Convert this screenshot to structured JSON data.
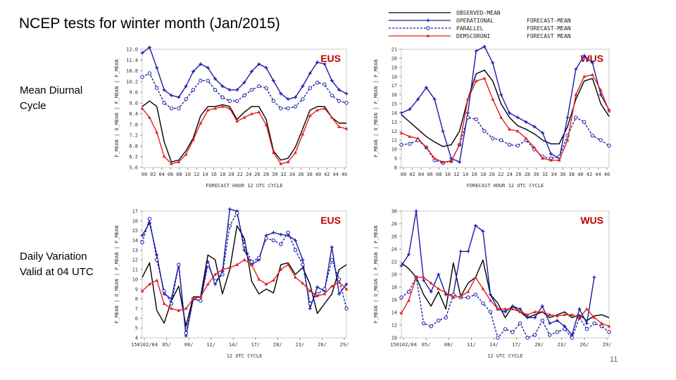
{
  "page": {
    "title": "NCEP tests for winter month (Jan/2015)",
    "row1_label": [
      "Mean Diurnal",
      "Cycle"
    ],
    "row2_label": [
      "Daily Variation",
      "Valid at 04 UTC"
    ],
    "page_number": "11"
  },
  "legend": [
    {
      "name": "OBSERVED-MEAN",
      "extra": "",
      "color": "#000000",
      "marker": "none",
      "dash": false
    },
    {
      "name": "OPERATIONAL",
      "extra": "FORECAST-MEAN",
      "color": "#1a1aa8",
      "marker": "plus",
      "dash": false
    },
    {
      "name": "PARALLEL",
      "extra": "FORECAST-MEAN",
      "color": "#1a1aa8",
      "marker": "circle",
      "dash": true
    },
    {
      "name": "DEMSCORONI",
      "extra": "FORECAST MEAN",
      "color": "#e02020",
      "marker": "triangle",
      "dash": false
    }
  ],
  "chart_data": [
    {
      "type": "line",
      "id": "eus-diurnal",
      "title": "EUS",
      "xlabel": "FORECAST HOUR  12 UTC CYCLE",
      "ylabel": "F_MEAN | O_MEAN | F_MEAN | F_MEAN",
      "xticks": [
        "00",
        "02",
        "04",
        "06",
        "08",
        "10",
        "12",
        "14",
        "16",
        "18",
        "20",
        "22",
        "24",
        "26",
        "28",
        "30",
        "32",
        "34",
        "36",
        "38",
        "40",
        "42",
        "44",
        "46"
      ],
      "yticks": [
        "5.6",
        "6.2",
        "6.8",
        "7.2",
        "7.8",
        "8.4",
        "9.0",
        "9.6",
        "10.2",
        "10.8",
        "11.4",
        "12.0"
      ],
      "ylim": [
        5.6,
        12.0
      ],
      "series": [
        {
          "name": "OBSERVED-MEAN",
          "color": "#000000",
          "marker": "none",
          "dash": false,
          "values": [
            8.9,
            9.2,
            8.9,
            7.0,
            5.9,
            6.0,
            6.5,
            7.2,
            8.4,
            8.9,
            8.9,
            9.0,
            8.9,
            8.2,
            8.6,
            8.9,
            8.9,
            8.2,
            6.5,
            6.0,
            6.1,
            6.7,
            7.7,
            8.7,
            8.9,
            8.9,
            8.3,
            8.0,
            8.0
          ]
        },
        {
          "name": "OPERATIONAL",
          "color": "#1a1aa8",
          "marker": "plus",
          "dash": false,
          "values": [
            11.8,
            12.1,
            11.0,
            9.8,
            9.5,
            9.4,
            10.0,
            10.8,
            11.2,
            11.0,
            10.4,
            10.0,
            9.8,
            9.8,
            10.2,
            10.8,
            11.2,
            11.0,
            10.3,
            9.6,
            9.3,
            9.4,
            10.0,
            10.7,
            11.3,
            11.2,
            10.3,
            9.8,
            9.6
          ]
        },
        {
          "name": "PARALLEL",
          "color": "#1a1aa8",
          "marker": "circle",
          "dash": true,
          "values": [
            10.5,
            10.7,
            9.9,
            9.1,
            8.8,
            8.8,
            9.3,
            9.8,
            10.3,
            10.3,
            9.8,
            9.4,
            9.2,
            9.2,
            9.5,
            9.8,
            10.0,
            9.9,
            9.2,
            8.8,
            8.8,
            8.9,
            9.3,
            9.9,
            10.2,
            10.1,
            9.5,
            9.2,
            9.1
          ]
        },
        {
          "name": "DEMSCORONI",
          "color": "#e02020",
          "marker": "triangle",
          "dash": false,
          "values": [
            8.8,
            8.3,
            7.5,
            6.2,
            5.8,
            5.9,
            6.3,
            7.1,
            8.0,
            8.7,
            8.8,
            8.9,
            8.8,
            8.1,
            8.3,
            8.5,
            8.6,
            7.9,
            6.4,
            5.8,
            5.9,
            6.4,
            7.4,
            8.4,
            8.7,
            8.8,
            8.3,
            7.8,
            7.7
          ]
        }
      ]
    },
    {
      "type": "line",
      "id": "wus-diurnal",
      "title": "WUS",
      "xlabel": "FORECAST HOUR  12 UTC CYCLE",
      "ylabel": "F_MEAN | O_MEAN | F_MEAN | F_MEAN",
      "xticks": [
        "00",
        "02",
        "04",
        "06",
        "08",
        "10",
        "12",
        "14",
        "16",
        "18",
        "20",
        "22",
        "24",
        "26",
        "28",
        "30",
        "32",
        "34",
        "36",
        "38",
        "40",
        "42",
        "44",
        "46"
      ],
      "yticks": [
        "8",
        "9",
        "10",
        "11",
        "12",
        "13",
        "14",
        "15",
        "16",
        "17",
        "18",
        "19",
        "20",
        "21"
      ],
      "ylim": [
        8,
        21
      ],
      "series": [
        {
          "name": "OBSERVED-MEAN",
          "color": "#000000",
          "marker": "none",
          "dash": false,
          "values": [
            13.8,
            13.0,
            12.2,
            11.4,
            10.8,
            10.3,
            10.5,
            12.0,
            15.5,
            18.3,
            18.7,
            17.5,
            15.0,
            13.5,
            12.6,
            12.2,
            11.7,
            11.0,
            10.6,
            10.6,
            12.5,
            15.5,
            17.5,
            17.8,
            15.0,
            13.6
          ]
        },
        {
          "name": "OPERATIONAL",
          "color": "#1a1aa8",
          "marker": "plus",
          "dash": false,
          "values": [
            14.0,
            14.4,
            15.5,
            16.8,
            15.5,
            12.0,
            9.0,
            8.6,
            14.0,
            20.8,
            21.3,
            19.5,
            16.0,
            14.0,
            13.5,
            13.0,
            12.5,
            11.8,
            9.5,
            9.0,
            13.5,
            18.8,
            20.3,
            19.5,
            16.0,
            14.3
          ]
        },
        {
          "name": "PARALLEL",
          "color": "#1a1aa8",
          "marker": "circle",
          "dash": true,
          "values": [
            10.5,
            10.6,
            11.0,
            10.2,
            8.8,
            8.5,
            8.7,
            10.5,
            13.5,
            13.3,
            12.0,
            11.2,
            11.0,
            10.5,
            10.4,
            11.0,
            10.0,
            9.2,
            9.0,
            9.2,
            11.5,
            13.5,
            13.0,
            11.5,
            11.0,
            10.4
          ]
        },
        {
          "name": "DEMSCORONI",
          "color": "#e02020",
          "marker": "triangle",
          "dash": false,
          "values": [
            11.8,
            11.4,
            11.2,
            10.2,
            9.0,
            8.6,
            8.7,
            10.5,
            15.5,
            17.5,
            17.8,
            15.5,
            13.5,
            12.2,
            12.0,
            11.2,
            10.2,
            9.0,
            8.8,
            8.8,
            11.0,
            16.0,
            18.0,
            18.2,
            16.5,
            14.2
          ]
        }
      ]
    },
    {
      "type": "line",
      "id": "eus-daily",
      "title": "EUS",
      "xlabel": "12 UTC CYCLE",
      "ylabel": "F_MEAN | O_MEAN | F_MEAN | F_MEAN",
      "xticks": [
        "150102/04",
        "05/",
        "08/",
        "11/",
        "14/",
        "17/",
        "20/",
        "23/",
        "26/",
        "29/"
      ],
      "yticks": [
        "4",
        "5",
        "6",
        "7",
        "8",
        "9",
        "10",
        "11",
        "12",
        "13",
        "14",
        "15",
        "16",
        "17"
      ],
      "ylim": [
        4,
        17
      ],
      "series": [
        {
          "name": "OBSERVED-MEAN",
          "color": "#000000",
          "marker": "none",
          "dash": false,
          "values": [
            10.2,
            11.7,
            6.8,
            5.5,
            7.8,
            9.3,
            5.2,
            8.2,
            8.2,
            12.5,
            12.0,
            8.5,
            11.0,
            15.5,
            14.2,
            9.8,
            8.5,
            9.0,
            8.6,
            11.5,
            11.7,
            10.5,
            11.2,
            9.5,
            6.5,
            7.5,
            8.5,
            11.0,
            11.5
          ]
        },
        {
          "name": "OPERATIONAL",
          "color": "#1a1aa8",
          "marker": "plus",
          "dash": false,
          "values": [
            14.5,
            15.8,
            12.5,
            8.5,
            8.0,
            11.5,
            4.2,
            8.0,
            7.8,
            11.8,
            9.5,
            10.8,
            17.2,
            17.0,
            13.0,
            11.5,
            12.0,
            14.5,
            14.8,
            14.6,
            14.5,
            14.0,
            12.0,
            7.0,
            9.2,
            8.8,
            13.3,
            8.5,
            9.5
          ]
        },
        {
          "name": "PARALLEL",
          "color": "#1a1aa8",
          "marker": "circle",
          "dash": true,
          "values": [
            13.8,
            16.2,
            12.0,
            8.8,
            7.5,
            11.5,
            4.5,
            8.0,
            7.8,
            11.5,
            9.8,
            10.5,
            15.5,
            16.8,
            13.5,
            11.8,
            12.2,
            14.2,
            14.0,
            13.6,
            14.8,
            13.0,
            11.5,
            7.5,
            8.5,
            9.0,
            12.0,
            10.0,
            7.0
          ]
        },
        {
          "name": "DEMSCORONI",
          "color": "#e02020",
          "marker": "triangle",
          "dash": false,
          "values": [
            8.8,
            9.5,
            9.9,
            7.5,
            7.0,
            6.8,
            7.0,
            8.0,
            8.2,
            9.5,
            10.5,
            11.0,
            11.2,
            11.5,
            12.0,
            11.5,
            10.0,
            9.5,
            9.9,
            11.0,
            11.5,
            10.2,
            9.6,
            8.8,
            8.3,
            8.5,
            9.3,
            9.7,
            9.0
          ]
        }
      ]
    },
    {
      "type": "line",
      "id": "wus-daily",
      "title": "WUS",
      "xlabel": "12 UTC CYCLE",
      "ylabel": "F_MEAN | O_MEAN | F_MEAN | F_MEAN",
      "xticks": [
        "150102/04",
        "05/",
        "08/",
        "11/",
        "14/",
        "17/",
        "20/",
        "23/",
        "26/",
        "29/"
      ],
      "yticks": [
        "10",
        "12",
        "14",
        "16",
        "18",
        "20",
        "22",
        "24",
        "26",
        "28",
        "30"
      ],
      "ylim": [
        9,
        31
      ],
      "series": [
        {
          "name": "OBSERVED-MEAN",
          "color": "#000000",
          "marker": "none",
          "dash": false,
          "values": [
            22.0,
            21.0,
            19.5,
            16.5,
            14.5,
            17.0,
            14.0,
            22.0,
            16.2,
            18.5,
            19.5,
            22.5,
            16.5,
            15.0,
            12.5,
            14.5,
            13.5,
            12.5,
            13.0,
            13.5,
            12.5,
            13.0,
            13.5,
            12.5,
            13.0,
            12.0,
            12.8,
            13.0,
            12.5
          ]
        },
        {
          "name": "OPERATIONAL",
          "color": "#1a1aa8",
          "marker": "plus",
          "dash": false,
          "values": [
            21.5,
            23.5,
            31.0,
            19.0,
            17.0,
            20.0,
            16.5,
            16.5,
            24.0,
            24.0,
            28.5,
            27.5,
            16.5,
            14.0,
            13.5,
            14.5,
            14.0,
            12.5,
            12.5,
            14.5,
            11.5,
            12.0,
            11.0,
            9.5,
            14.0,
            11.5,
            19.5,
            null,
            null
          ]
        },
        {
          "name": "PARALLEL",
          "color": "#1a1aa8",
          "marker": "circle",
          "dash": true,
          "values": [
            16.0,
            17.0,
            19.5,
            11.5,
            11.0,
            12.0,
            12.5,
            16.5,
            16.0,
            16.0,
            16.5,
            15.0,
            13.5,
            9.0,
            10.5,
            10.0,
            11.5,
            9.0,
            9.5,
            12.0,
            9.5,
            10.0,
            10.5,
            9.0,
            12.5,
            10.5,
            11.5,
            11.0,
            10.0
          ]
        },
        {
          "name": "DEMSCORONI",
          "color": "#e02020",
          "marker": "triangle",
          "dash": false,
          "values": [
            13.3,
            15.5,
            19.5,
            19.5,
            18.5,
            17.5,
            16.8,
            16.0,
            16.2,
            17.0,
            19.5,
            17.5,
            15.5,
            14.0,
            14.0,
            14.0,
            13.5,
            13.0,
            13.5,
            13.5,
            13.0,
            12.8,
            13.0,
            13.0,
            12.5,
            14.0,
            12.5,
            11.5,
            11.0
          ]
        }
      ]
    }
  ]
}
